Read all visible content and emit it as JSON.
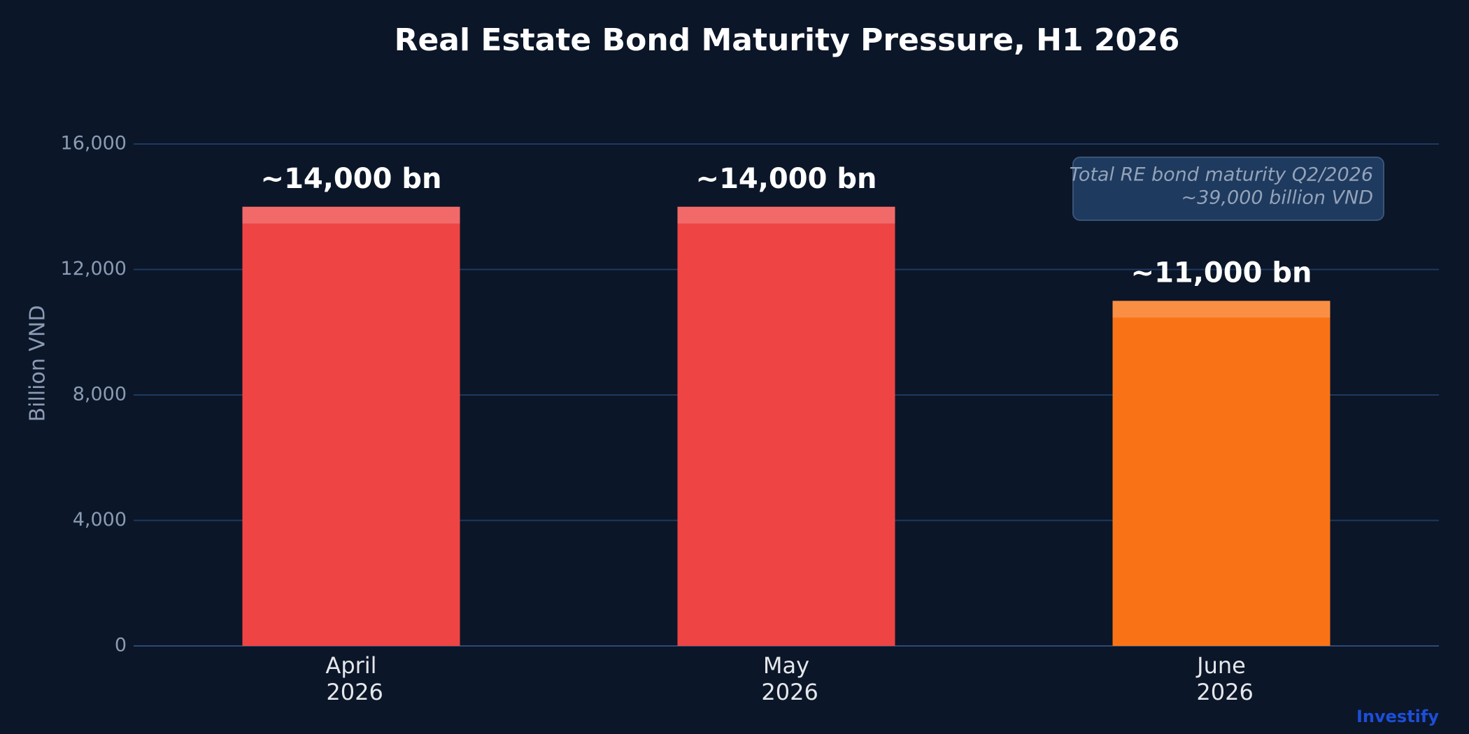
{
  "chart_data": {
    "type": "bar",
    "title": "Real Estate Bond Maturity Pressure, H1 2026",
    "y_label": "Billion VND",
    "categories": [
      "April 2026",
      "May 2026",
      "June 2026"
    ],
    "values": [
      14000,
      14000,
      11000
    ],
    "value_labels": [
      "~14,000 bn",
      "~14,000 bn",
      "~11,000 bn"
    ],
    "colors": [
      "#ef4444",
      "#ef4444",
      "#f97316"
    ],
    "ylim": [
      0,
      16000
    ],
    "yticks": [
      0,
      {
        "value": 4000,
        "label": "4,000"
      },
      {
        "value": 8000,
        "label": "8,000"
      },
      {
        "value": 12000,
        "label": "12,000"
      },
      {
        "value": 16000,
        "label": "16,000"
      }
    ],
    "grid": true,
    "annotation": [
      "Total RE bond maturity Q2/2026",
      "~39,000 billion VND"
    ],
    "watermark": "Investify"
  }
}
